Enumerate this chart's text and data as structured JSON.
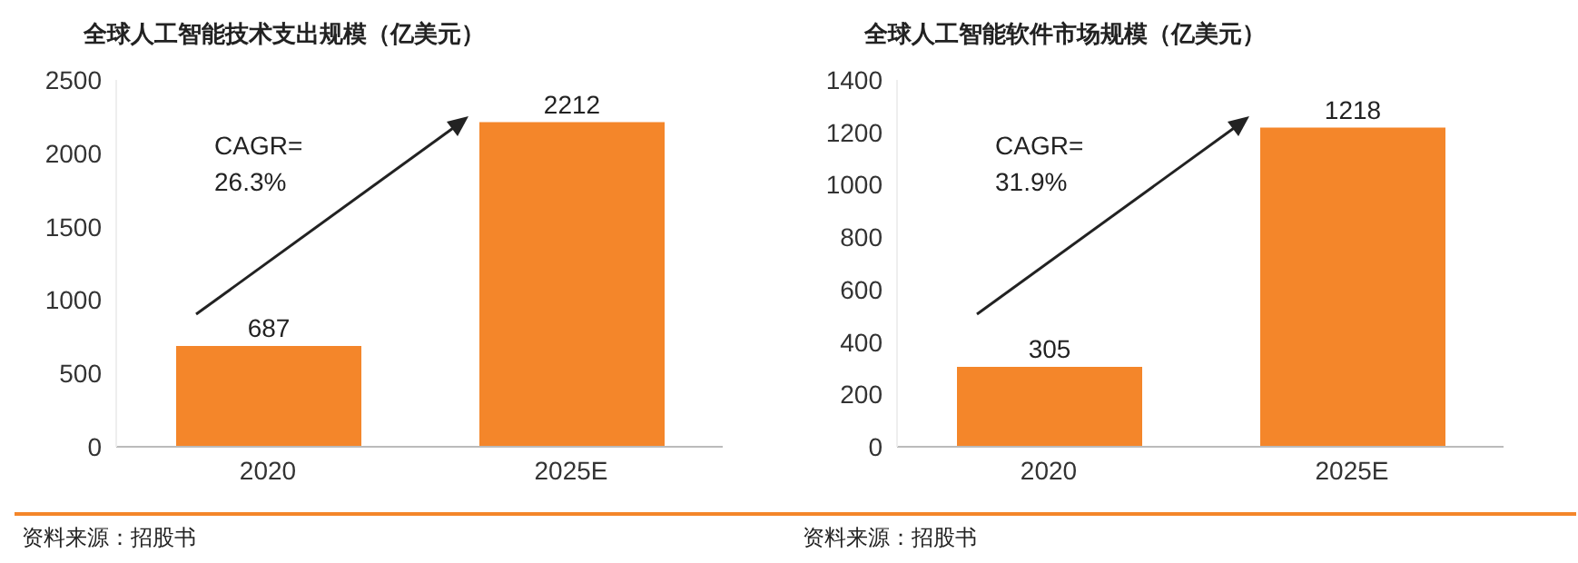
{
  "chart_data": [
    {
      "type": "bar",
      "title": "全球人工智能技术支出规模（亿美元）",
      "categories": [
        "2020",
        "2025E"
      ],
      "values": [
        687,
        2212
      ],
      "color": "#f4862a",
      "ylim": [
        0,
        2500
      ],
      "yticks": [
        0,
        500,
        1000,
        1500,
        2000,
        2500
      ],
      "grid": false,
      "data_labels": true,
      "annotations": [
        "CAGR=\n26.3%",
        "资料来源：招股书"
      ]
    },
    {
      "type": "bar",
      "title": "全球人工智能软件市场规模（亿美元）",
      "categories": [
        "2020",
        "2025E"
      ],
      "values": [
        305,
        1218
      ],
      "color": "#f4862a",
      "ylim": [
        0,
        1400
      ],
      "yticks": [
        0,
        200,
        400,
        600,
        800,
        1000,
        1200,
        1400
      ],
      "grid": false,
      "data_labels": true,
      "annotations": [
        "CAGR=\n31.9%",
        "资料来源：招股书"
      ]
    }
  ]
}
